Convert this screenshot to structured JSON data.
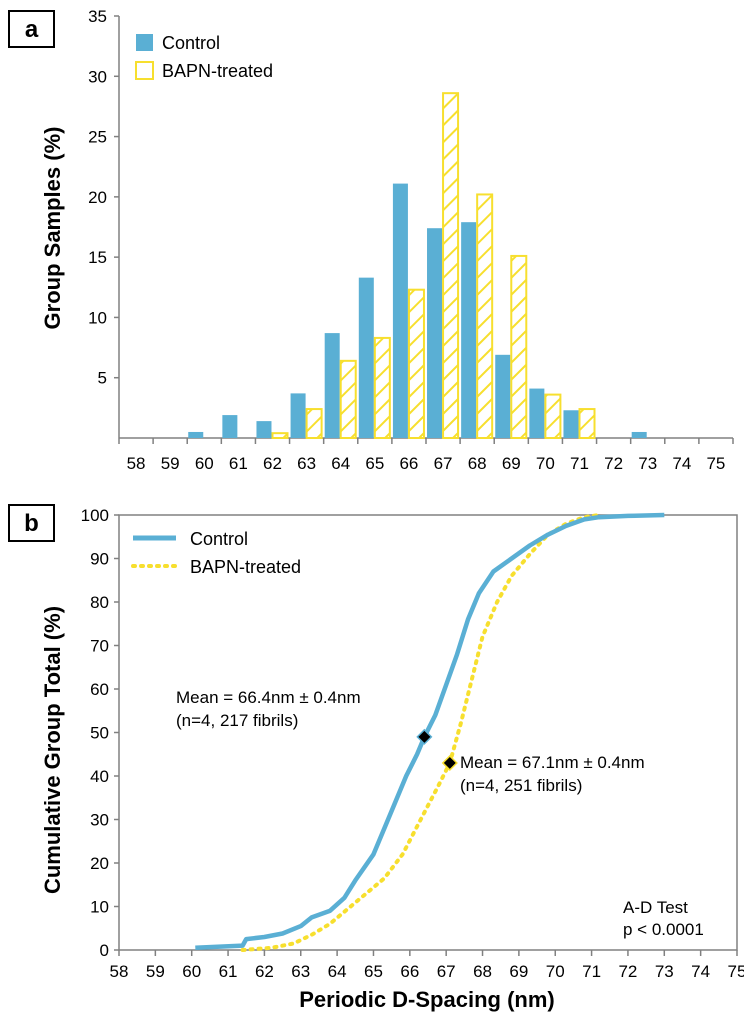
{
  "colors": {
    "control": "#5AAFD4",
    "bapn": "#F7DF2E",
    "axis": "#808080"
  },
  "chart_data": [
    {
      "panel": "a",
      "type": "bar",
      "xlabel": "",
      "ylabel": "Group Samples (%)",
      "ylim": [
        0,
        35
      ],
      "yticks": [
        5,
        10,
        15,
        20,
        25,
        30,
        35
      ],
      "categories": [
        "58",
        "59",
        "60",
        "61",
        "62",
        "63",
        "64",
        "65",
        "66",
        "67",
        "68",
        "69",
        "70",
        "71",
        "72",
        "73",
        "74",
        "75"
      ],
      "series": [
        {
          "name": "Control",
          "values": [
            0,
            0,
            0.5,
            1.9,
            1.4,
            3.7,
            8.7,
            13.3,
            21.1,
            17.4,
            17.9,
            6.9,
            4.1,
            2.3,
            0,
            0.5,
            0,
            0
          ]
        },
        {
          "name": "BAPN-treated",
          "values": [
            0,
            0,
            0,
            0,
            0.4,
            2.4,
            6.4,
            8.3,
            12.3,
            28.6,
            20.2,
            15.1,
            3.6,
            2.4,
            0,
            0,
            0,
            0
          ]
        }
      ],
      "legend": "top-left",
      "grid": false
    },
    {
      "panel": "b",
      "type": "line",
      "xlabel": "Periodic D-Spacing (nm)",
      "ylabel": "Cumulative Group Total (%)",
      "xlim": [
        58,
        75
      ],
      "ylim": [
        0,
        100
      ],
      "xticks": [
        "58",
        "59",
        "60",
        "61",
        "62",
        "63",
        "64",
        "65",
        "66",
        "67",
        "68",
        "69",
        "70",
        "71",
        "72",
        "73",
        "74",
        "75"
      ],
      "yticks": [
        "0",
        "10",
        "20",
        "30",
        "40",
        "50",
        "60",
        "70",
        "80",
        "90",
        "100"
      ],
      "series": [
        {
          "name": "Control",
          "x": [
            60.1,
            61.4,
            61.5,
            62.0,
            62.5,
            63.0,
            63.3,
            63.8,
            64.2,
            64.5,
            65.0,
            65.3,
            65.6,
            65.9,
            66.2,
            66.4,
            66.7,
            67.0,
            67.3,
            67.6,
            67.9,
            68.3,
            68.8,
            69.3,
            69.8,
            70.3,
            70.8,
            71.2,
            72.0,
            73.0
          ],
          "y": [
            0.5,
            1,
            2.5,
            3.0,
            3.8,
            5.5,
            7.5,
            9.0,
            12,
            16,
            22,
            28,
            34,
            40,
            45,
            49,
            54,
            61,
            68,
            76,
            82,
            87,
            90,
            93,
            95.5,
            97.5,
            99,
            99.5,
            99.8,
            100
          ]
        },
        {
          "name": "BAPN-treated",
          "x": [
            61.4,
            62.2,
            62.8,
            63.3,
            63.8,
            64.3,
            64.8,
            65.3,
            65.8,
            66.3,
            66.8,
            67.1,
            67.4,
            67.7,
            68.0,
            68.4,
            68.8,
            69.3,
            69.8,
            70.3,
            70.8,
            71.2
          ],
          "y": [
            0,
            0.5,
            1.5,
            3.5,
            6,
            9.5,
            13,
            16.5,
            22,
            30,
            38,
            43,
            52,
            62,
            72,
            80,
            86,
            91,
            95.5,
            98,
            99.5,
            100
          ]
        }
      ],
      "legend": "top-left",
      "grid": false,
      "means": [
        {
          "series": "Control",
          "x": 66.4,
          "y": 49,
          "line1": "Mean = 66.4nm ± 0.4nm",
          "line2": "(n=4, 217 fibrils)"
        },
        {
          "series": "BAPN-treated",
          "x": 67.1,
          "y": 43,
          "line1": "Mean = 67.1nm ± 0.4nm",
          "line2": "(n=4, 251 fibrils)"
        }
      ],
      "test": {
        "line1": "A-D Test",
        "line2": "p < 0.0001"
      }
    }
  ]
}
